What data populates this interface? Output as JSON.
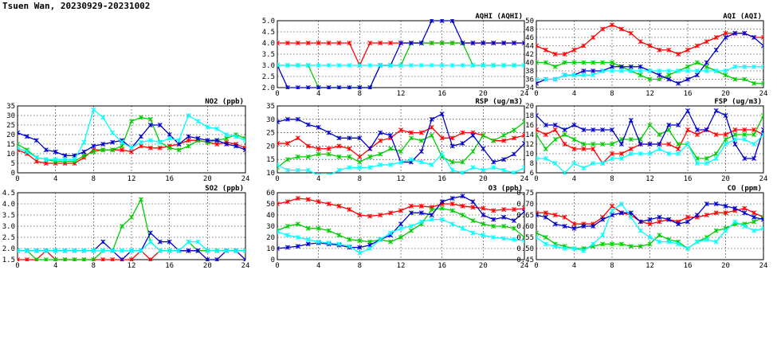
{
  "page": {
    "title": "Tsuen Wan, 20230929-20231002"
  },
  "chart_data": [
    {
      "id": "aqhi",
      "type": "line",
      "title": "AQHI (AQHI)",
      "xlim": [
        0,
        24
      ],
      "ylim": [
        2,
        5
      ],
      "xticks": [
        0,
        4,
        8,
        12,
        16,
        20,
        24
      ],
      "yticks": [
        2.0,
        2.5,
        3.0,
        3.5,
        4.0,
        4.5,
        5.0
      ],
      "ydec": 1,
      "grid": true,
      "series": [
        {
          "color": "#ff0000",
          "values": [
            4,
            4,
            4,
            4,
            4,
            4,
            4,
            4,
            3,
            4,
            4,
            4,
            4,
            4,
            4,
            4,
            4,
            4,
            4,
            4,
            4,
            4,
            4,
            4,
            4
          ]
        },
        {
          "color": "#00cc00",
          "values": [
            3,
            3,
            3,
            3,
            2,
            2,
            2,
            2,
            2,
            2,
            3,
            3,
            3,
            4,
            4,
            4,
            4,
            4,
            4,
            3,
            3,
            3,
            3,
            3,
            3
          ]
        },
        {
          "color": "#0000cc",
          "values": [
            3,
            2,
            2,
            2,
            2,
            2,
            2,
            2,
            2,
            2,
            3,
            3,
            4,
            4,
            4,
            5,
            5,
            5,
            4,
            4,
            4,
            4,
            4,
            4,
            4
          ]
        },
        {
          "color": "#00ffff",
          "values": [
            3,
            3,
            3,
            3,
            3,
            3,
            3,
            3,
            3,
            3,
            3,
            3,
            3,
            3,
            3,
            3,
            3,
            3,
            3,
            3,
            3,
            3,
            3,
            3,
            3
          ]
        }
      ]
    },
    {
      "id": "aqi",
      "type": "line",
      "title": "AQI (AQI)",
      "xlim": [
        0,
        24
      ],
      "ylim": [
        34,
        50
      ],
      "xticks": [
        0,
        4,
        8,
        12,
        16,
        20,
        24
      ],
      "yticks": [
        34,
        36,
        38,
        40,
        42,
        44,
        46,
        48,
        50
      ],
      "ydec": 0,
      "grid": true,
      "series": [
        {
          "color": "#ff0000",
          "values": [
            44,
            43,
            42,
            42,
            43,
            44,
            46,
            48,
            49,
            48,
            47,
            45,
            44,
            43,
            43,
            42,
            43,
            44,
            45,
            46,
            47,
            47,
            47,
            46,
            46
          ]
        },
        {
          "color": "#00cc00",
          "values": [
            40,
            40,
            39,
            40,
            40,
            40,
            40,
            40,
            40,
            39,
            38,
            37,
            36,
            36,
            37,
            38,
            39,
            40,
            39,
            38,
            37,
            36,
            36,
            35,
            35
          ]
        },
        {
          "color": "#0000cc",
          "values": [
            35,
            36,
            36,
            37,
            37,
            38,
            38,
            38,
            39,
            39,
            39,
            39,
            38,
            37,
            36,
            35,
            36,
            37,
            40,
            43,
            46,
            47,
            47,
            46,
            44
          ]
        },
        {
          "color": "#00ffff",
          "values": [
            36,
            36,
            36,
            37,
            37,
            37,
            37,
            38,
            38,
            38,
            38,
            38,
            38,
            38,
            38,
            38,
            38,
            38,
            38,
            38,
            38,
            39,
            39,
            39,
            39
          ]
        }
      ]
    },
    {
      "id": "no2",
      "type": "line",
      "title": "NO2 (ppb)",
      "xlim": [
        0,
        24
      ],
      "ylim": [
        0,
        35
      ],
      "xticks": [
        0,
        4,
        8,
        12,
        16,
        20,
        24
      ],
      "yticks": [
        0,
        5,
        10,
        15,
        20,
        25,
        30,
        35
      ],
      "ydec": 0,
      "grid": true,
      "series": [
        {
          "color": "#ff0000",
          "values": [
            12,
            10,
            6,
            5,
            5,
            5,
            5,
            8,
            12,
            12,
            12,
            12,
            11,
            14,
            13,
            13,
            14,
            15,
            17,
            17,
            16,
            15,
            16,
            15,
            13
          ]
        },
        {
          "color": "#00cc00",
          "values": [
            15,
            12,
            8,
            7,
            6,
            6,
            6,
            9,
            11,
            12,
            12,
            14,
            27,
            29,
            28,
            16,
            13,
            12,
            14,
            17,
            16,
            17,
            18,
            20,
            18
          ]
        },
        {
          "color": "#0000cc",
          "values": [
            21,
            19,
            17,
            12,
            11,
            9,
            9,
            11,
            14,
            15,
            16,
            17,
            13,
            19,
            25,
            25,
            20,
            15,
            19,
            18,
            17,
            17,
            15,
            14,
            12
          ]
        },
        {
          "color": "#00ffff",
          "values": [
            13,
            11,
            8,
            7,
            7,
            7,
            7,
            16,
            33,
            29,
            21,
            16,
            13,
            16,
            17,
            16,
            18,
            17,
            30,
            27,
            24,
            23,
            20,
            19,
            17
          ]
        }
      ]
    },
    {
      "id": "rsp",
      "type": "line",
      "title": "RSP (ug/m3)",
      "xlim": [
        0,
        24
      ],
      "ylim": [
        10,
        35
      ],
      "xticks": [
        0,
        4,
        8,
        12,
        16,
        20,
        24
      ],
      "yticks": [
        10,
        15,
        20,
        25,
        30,
        35
      ],
      "ydec": 0,
      "grid": true,
      "series": [
        {
          "color": "#ff0000",
          "values": [
            21,
            21,
            23,
            20,
            19,
            19,
            20,
            19,
            16,
            19,
            22,
            23,
            26,
            25,
            25,
            27,
            23,
            23,
            25,
            25,
            24,
            22,
            22,
            23,
            24
          ]
        },
        {
          "color": "#00cc00",
          "values": [
            12,
            15,
            16,
            16,
            17,
            17,
            16,
            16,
            14,
            16,
            17,
            19,
            18,
            23,
            22,
            24,
            16,
            14,
            14,
            18,
            24,
            22,
            24,
            26,
            29
          ]
        },
        {
          "color": "#0000cc",
          "values": [
            29,
            30,
            30,
            28,
            27,
            25,
            23,
            23,
            23,
            19,
            25,
            24,
            14,
            14,
            18,
            30,
            32,
            20,
            21,
            24,
            19,
            14,
            15,
            17,
            21
          ]
        },
        {
          "color": "#00ffff",
          "values": [
            13,
            11,
            11,
            11,
            9,
            9,
            11,
            12,
            12,
            12,
            13,
            13,
            14,
            15,
            14,
            13,
            17,
            11,
            10,
            12,
            11,
            12,
            11,
            10,
            12
          ]
        }
      ]
    },
    {
      "id": "fsp",
      "type": "line",
      "title": "FSP (ug/m3)",
      "xlim": [
        0,
        24
      ],
      "ylim": [
        6,
        20
      ],
      "xticks": [
        0,
        4,
        8,
        12,
        16,
        20,
        24
      ],
      "yticks": [
        6,
        8,
        10,
        12,
        14,
        16,
        18,
        20
      ],
      "ydec": 0,
      "grid": true,
      "series": [
        {
          "color": "#ff0000",
          "values": [
            15,
            14,
            15,
            12,
            11,
            11,
            11,
            8,
            10,
            10,
            11,
            12,
            12,
            12,
            12,
            11,
            15,
            14,
            15,
            14,
            14,
            15,
            15,
            15,
            14
          ]
        },
        {
          "color": "#00cc00",
          "values": [
            14,
            11,
            13,
            14,
            13,
            12,
            12,
            12,
            12,
            13,
            13,
            13,
            16,
            14,
            15,
            12,
            12,
            9,
            9,
            10,
            13,
            14,
            14,
            14,
            18
          ]
        },
        {
          "color": "#0000cc",
          "values": [
            18,
            16,
            16,
            15,
            16,
            15,
            15,
            15,
            15,
            12,
            17,
            12,
            12,
            12,
            16,
            16,
            19,
            15,
            15,
            19,
            18,
            12,
            9,
            9,
            15
          ]
        },
        {
          "color": "#00ffff",
          "values": [
            9,
            9,
            8,
            6,
            8,
            7,
            8,
            8,
            9,
            9,
            10,
            10,
            10,
            11,
            10,
            10,
            12,
            8,
            8,
            9,
            12,
            13,
            13,
            12,
            14
          ]
        }
      ]
    },
    {
      "id": "so2",
      "type": "line",
      "title": "SO2 (ppb)",
      "xlim": [
        0,
        24
      ],
      "ylim": [
        1.5,
        4.5
      ],
      "xticks": [
        0,
        4,
        8,
        12,
        16,
        20,
        24
      ],
      "yticks": [
        1.5,
        2.0,
        2.5,
        3.0,
        3.5,
        4.0,
        4.5
      ],
      "ydec": 1,
      "grid": true,
      "series": [
        {
          "color": "#ff0000",
          "values": [
            1.5,
            1.5,
            1.5,
            1.9,
            1.5,
            1.5,
            1.5,
            1.5,
            1.5,
            1.5,
            1.5,
            1.5,
            1.5,
            1.9,
            1.5,
            1.9,
            1.9,
            1.9,
            1.9,
            1.9,
            1.9,
            1.9,
            1.9,
            1.9,
            1.9
          ]
        },
        {
          "color": "#00cc00",
          "values": [
            1.9,
            1.9,
            1.5,
            1.5,
            1.5,
            1.5,
            1.5,
            1.5,
            1.5,
            1.9,
            1.9,
            3.0,
            3.4,
            4.2,
            2.3,
            1.9,
            1.9,
            1.9,
            2.3,
            1.9,
            1.9,
            1.9,
            1.9,
            1.9,
            1.9
          ]
        },
        {
          "color": "#0000cc",
          "values": [
            1.9,
            1.9,
            1.9,
            1.9,
            1.9,
            1.9,
            1.9,
            1.9,
            1.9,
            2.3,
            1.9,
            1.5,
            1.9,
            1.9,
            2.7,
            2.3,
            2.3,
            1.9,
            1.9,
            1.9,
            1.5,
            1.5,
            1.9,
            1.9,
            1.5
          ]
        },
        {
          "color": "#00ffff",
          "values": [
            1.9,
            1.9,
            1.9,
            1.9,
            1.9,
            1.9,
            1.9,
            1.9,
            1.9,
            1.9,
            1.9,
            1.9,
            1.9,
            1.9,
            2.3,
            1.9,
            1.9,
            1.9,
            2.3,
            2.3,
            1.9,
            1.9,
            1.9,
            1.9,
            1.9
          ]
        }
      ]
    },
    {
      "id": "o3",
      "type": "line",
      "title": "O3 (ppb)",
      "xlim": [
        0,
        24
      ],
      "ylim": [
        0,
        60
      ],
      "xticks": [
        0,
        4,
        8,
        12,
        16,
        20,
        24
      ],
      "yticks": [
        0,
        10,
        20,
        30,
        40,
        50,
        60
      ],
      "ydec": 0,
      "grid": true,
      "series": [
        {
          "color": "#ff0000",
          "values": [
            50,
            52,
            55,
            54,
            52,
            50,
            48,
            45,
            40,
            39,
            40,
            42,
            44,
            48,
            48,
            47,
            50,
            50,
            48,
            47,
            46,
            44,
            45,
            45,
            46
          ]
        },
        {
          "color": "#00cc00",
          "values": [
            26,
            30,
            32,
            28,
            28,
            26,
            22,
            18,
            17,
            16,
            18,
            16,
            20,
            26,
            32,
            45,
            46,
            44,
            40,
            35,
            32,
            30,
            30,
            28,
            20
          ]
        },
        {
          "color": "#0000cc",
          "values": [
            10,
            11,
            12,
            14,
            15,
            14,
            13,
            11,
            11,
            13,
            18,
            22,
            32,
            42,
            42,
            40,
            52,
            55,
            57,
            52,
            40,
            36,
            38,
            35,
            43
          ]
        },
        {
          "color": "#00ffff",
          "values": [
            25,
            22,
            20,
            18,
            16,
            15,
            14,
            12,
            6,
            10,
            18,
            24,
            28,
            30,
            34,
            36,
            36,
            32,
            28,
            24,
            22,
            20,
            19,
            18,
            17
          ]
        }
      ]
    },
    {
      "id": "co",
      "type": "line",
      "title": "CO (ppm)",
      "xlim": [
        0,
        24
      ],
      "ylim": [
        0.45,
        0.75
      ],
      "xticks": [
        0,
        4,
        8,
        12,
        16,
        20,
        24
      ],
      "yticks": [
        0.45,
        0.5,
        0.55,
        0.6,
        0.65,
        0.7,
        0.75
      ],
      "ydec": 2,
      "grid": true,
      "series": [
        {
          "color": "#ff0000",
          "values": [
            0.66,
            0.66,
            0.65,
            0.64,
            0.61,
            0.61,
            0.61,
            0.64,
            0.69,
            0.66,
            0.65,
            0.62,
            0.61,
            0.62,
            0.63,
            0.62,
            0.64,
            0.64,
            0.65,
            0.66,
            0.66,
            0.67,
            0.68,
            0.66,
            0.64
          ]
        },
        {
          "color": "#00cc00",
          "values": [
            0.57,
            0.55,
            0.52,
            0.51,
            0.5,
            0.5,
            0.51,
            0.52,
            0.52,
            0.52,
            0.51,
            0.51,
            0.52,
            0.56,
            0.54,
            0.53,
            0.5,
            0.53,
            0.55,
            0.58,
            0.59,
            0.61,
            0.61,
            0.62,
            0.64
          ]
        },
        {
          "color": "#0000cc",
          "values": [
            0.65,
            0.64,
            0.61,
            0.6,
            0.59,
            0.6,
            0.6,
            0.63,
            0.65,
            0.66,
            0.66,
            0.62,
            0.63,
            0.64,
            0.63,
            0.61,
            0.62,
            0.65,
            0.7,
            0.7,
            0.69,
            0.68,
            0.66,
            0.64,
            0.63
          ]
        },
        {
          "color": "#00ffff",
          "values": [
            0.55,
            0.52,
            0.51,
            0.5,
            0.5,
            0.49,
            0.52,
            0.56,
            0.67,
            0.7,
            0.64,
            0.58,
            0.55,
            0.53,
            0.53,
            0.52,
            0.5,
            0.53,
            0.54,
            0.53,
            0.58,
            0.62,
            0.6,
            0.58,
            0.59
          ]
        }
      ]
    }
  ]
}
